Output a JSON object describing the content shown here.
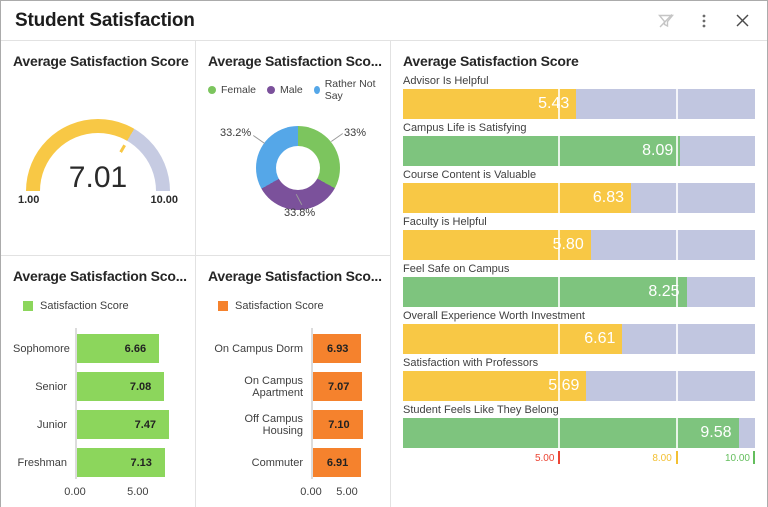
{
  "header": {
    "title": "Student Satisfaction",
    "icons": [
      "filter-off",
      "more-vertical",
      "close"
    ]
  },
  "chart_data": [
    {
      "id": "overall-score",
      "type": "gauge",
      "title": "Average Satisfaction Score",
      "value": 7.01,
      "min": 1,
      "max": 10,
      "min_label": "1.00",
      "max_label": "10.00",
      "fill_color": "#F8C845",
      "track_color": "#C6CBE2"
    },
    {
      "id": "gender-split",
      "type": "pie",
      "title": "Average Satisfaction Sco...",
      "legend_position": "top",
      "slices": [
        {
          "label": "Female",
          "pct": 33.0,
          "display": "33%",
          "color": "#7CC55E",
          "label_pos": "right"
        },
        {
          "label": "Male",
          "pct": 33.8,
          "display": "33.8%",
          "color": "#7B519B",
          "label_pos": "bottom"
        },
        {
          "label": "Rather Not Say",
          "pct": 33.2,
          "display": "33.2%",
          "color": "#55A7E8",
          "label_pos": "left"
        }
      ]
    },
    {
      "id": "satisfaction-bullet",
      "type": "bar",
      "title": "Average Satisfaction Score",
      "axis_min": 1,
      "axis_max": 10,
      "track_color": "#C1C6E0",
      "color_low": "#F8C845",
      "color_high": "#7EC47E",
      "high_threshold": 8,
      "gridlines": [
        5,
        8
      ],
      "thresholds": [
        {
          "value": 5,
          "label": "5.00",
          "color": "#EC4534"
        },
        {
          "value": 8,
          "label": "8.00",
          "color": "#F3C033"
        },
        {
          "value": 10,
          "label": "10.00",
          "color": "#64BE5D"
        }
      ],
      "bars": [
        {
          "label": "Advisor Is Helpful",
          "value": 5.43
        },
        {
          "label": "Campus Life is Satisfying",
          "value": 8.09
        },
        {
          "label": "Course Content is Valuable",
          "value": 6.83
        },
        {
          "label": "Faculty is Helpful",
          "value": 5.8
        },
        {
          "label": "Feel Safe on Campus",
          "value": 8.25
        },
        {
          "label": "Overall Experience Worth Investment",
          "value": 6.61
        },
        {
          "label": "Satisfaction with Professors",
          "value": 5.69
        },
        {
          "label": "Student Feels Like They Belong",
          "value": 9.58
        }
      ]
    },
    {
      "id": "class-year",
      "type": "bar",
      "title": "Average Satisfaction Sco...",
      "legend": [
        {
          "label": "Satisfaction Score",
          "color": "#8CD65C"
        }
      ],
      "bar_color": "#8CD65C",
      "categories": [
        "Sophomore",
        "Senior",
        "Junior",
        "Freshman"
      ],
      "values": [
        6.66,
        7.08,
        7.47,
        7.13
      ],
      "xlim": [
        0,
        8.6
      ],
      "x_ticks": [
        {
          "value": 0,
          "label": "0.00"
        },
        {
          "value": 5,
          "label": "5.00"
        }
      ]
    },
    {
      "id": "housing",
      "type": "bar",
      "title": "Average Satisfaction Sco...",
      "legend": [
        {
          "label": "Satisfaction Score",
          "color": "#F5822D"
        }
      ],
      "bar_color": "#F5822D",
      "categories": [
        "On Campus Dorm",
        "On Campus Apartment",
        "Off Campus Housing",
        "Commuter"
      ],
      "values": [
        6.93,
        7.07,
        7.1,
        6.91
      ],
      "xlim": [
        0,
        9.3
      ],
      "x_ticks": [
        {
          "value": 0,
          "label": "0.00"
        },
        {
          "value": 5,
          "label": "5.00"
        }
      ]
    }
  ]
}
